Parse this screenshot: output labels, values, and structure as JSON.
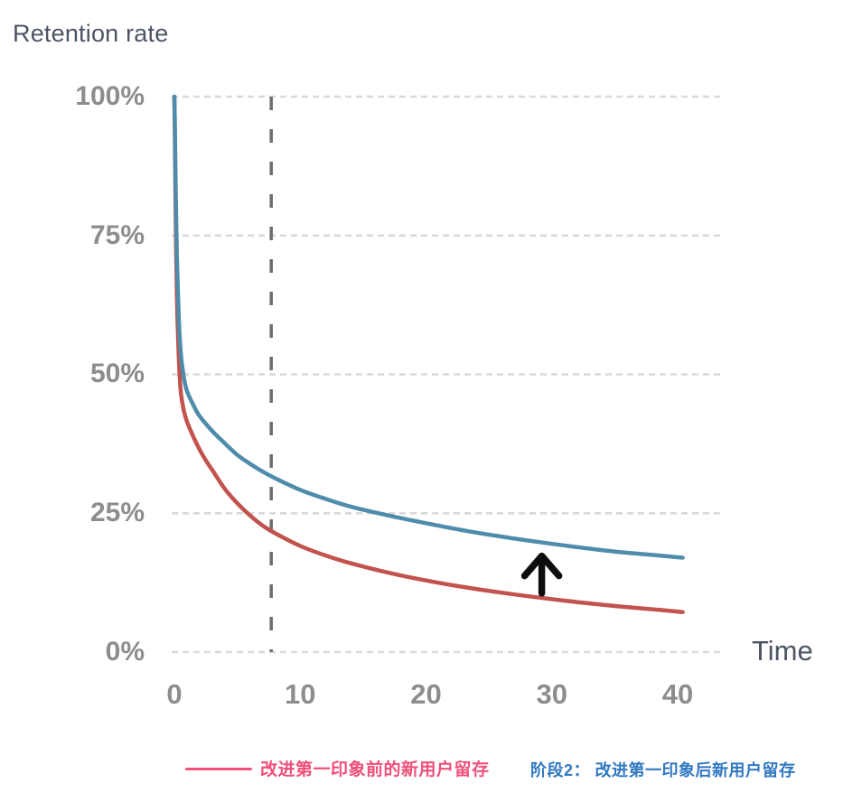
{
  "title": "Retention rate",
  "legend": {
    "before_label": "改进第一印象前的新用户留存",
    "before_color": "#ef4f78",
    "after_label": "阶段2：  改进第一印象后新用户留存",
    "after_color": "#3078c1"
  },
  "colors": {
    "title_text": "#4c5464",
    "tick_text": "#8d8d8d",
    "gridline": "#d9d9d9",
    "stage_divider": "#6d6d6d",
    "arrow": "#0d0d0d",
    "curve_before": "#c2534e",
    "curve_after": "#4f8cab"
  },
  "chart_data": {
    "type": "line",
    "title": "Retention rate",
    "xlabel": "Time",
    "ylabel": "Retention rate",
    "xlim": [
      0,
      40.5
    ],
    "ylim": [
      0,
      100
    ],
    "grid": "horizontal dashed gridlines at each y tick; no solid axes",
    "legend_position": "bottom",
    "xticks": [
      {
        "value": 0,
        "label": "0"
      },
      {
        "value": 10,
        "label": "10"
      },
      {
        "value": 20,
        "label": "20"
      },
      {
        "value": 30,
        "label": "30"
      },
      {
        "value": 40,
        "label": "40"
      }
    ],
    "yticks": [
      {
        "value": 100,
        "label": "100%"
      },
      {
        "value": 75,
        "label": "75%"
      },
      {
        "value": 50,
        "label": "50%"
      },
      {
        "value": 25,
        "label": "25%"
      },
      {
        "value": 0,
        "label": "0%"
      }
    ],
    "series": [
      {
        "name": "改进第一印象前的新用户留存",
        "role": "before-improvement (red curve)",
        "color": "#c2534e",
        "points": [
          [
            0,
            100
          ],
          [
            0.05,
            90
          ],
          [
            0.1,
            79
          ],
          [
            0.2,
            64
          ],
          [
            0.35,
            53
          ],
          [
            0.5,
            47
          ],
          [
            0.75,
            43.5
          ],
          [
            1,
            41.5
          ],
          [
            1.5,
            38.8
          ],
          [
            2,
            36.5
          ],
          [
            2.5,
            34.5
          ],
          [
            3,
            32.8
          ],
          [
            4,
            29.4
          ],
          [
            5,
            26.8
          ],
          [
            6,
            24.6
          ],
          [
            7,
            22.8
          ],
          [
            8,
            21.4
          ],
          [
            10,
            19.1
          ],
          [
            12,
            17.4
          ],
          [
            14,
            16.0
          ],
          [
            17,
            14.3
          ],
          [
            20,
            12.9
          ],
          [
            23,
            11.7
          ],
          [
            26,
            10.7
          ],
          [
            29,
            9.8
          ],
          [
            32,
            9.0
          ],
          [
            35,
            8.3
          ],
          [
            38,
            7.7
          ],
          [
            40.4,
            7.2
          ]
        ]
      },
      {
        "name": "阶段2：改进第一印象后新用户留存",
        "role": "after-improvement (blue curve)",
        "color": "#4f8cab",
        "points": [
          [
            0,
            100
          ],
          [
            0.05,
            93
          ],
          [
            0.1,
            84
          ],
          [
            0.2,
            71
          ],
          [
            0.35,
            60
          ],
          [
            0.5,
            54
          ],
          [
            0.75,
            49.5
          ],
          [
            1,
            47
          ],
          [
            1.5,
            44.5
          ],
          [
            2,
            42.5
          ],
          [
            3,
            39.8
          ],
          [
            4,
            37.6
          ],
          [
            5,
            35.5
          ],
          [
            6,
            33.9
          ],
          [
            7,
            32.5
          ],
          [
            8,
            31.3
          ],
          [
            10,
            29.2
          ],
          [
            12,
            27.6
          ],
          [
            14,
            26.2
          ],
          [
            17,
            24.6
          ],
          [
            20,
            23.2
          ],
          [
            23,
            21.9
          ],
          [
            26,
            20.8
          ],
          [
            29,
            19.8
          ],
          [
            32,
            18.9
          ],
          [
            35,
            18.1
          ],
          [
            38,
            17.5
          ],
          [
            40.4,
            17.0
          ]
        ]
      }
    ],
    "annotations": {
      "stage_divider": {
        "type": "vline",
        "x": 7.7,
        "y_from": 0,
        "y_to": 100,
        "style": "dashed",
        "color": "#6d6d6d"
      },
      "improvement_arrow": {
        "type": "arrow-up",
        "x": 29.2,
        "y_from": 10.6,
        "y_to": 17.3,
        "color": "#0d0d0d"
      }
    }
  }
}
